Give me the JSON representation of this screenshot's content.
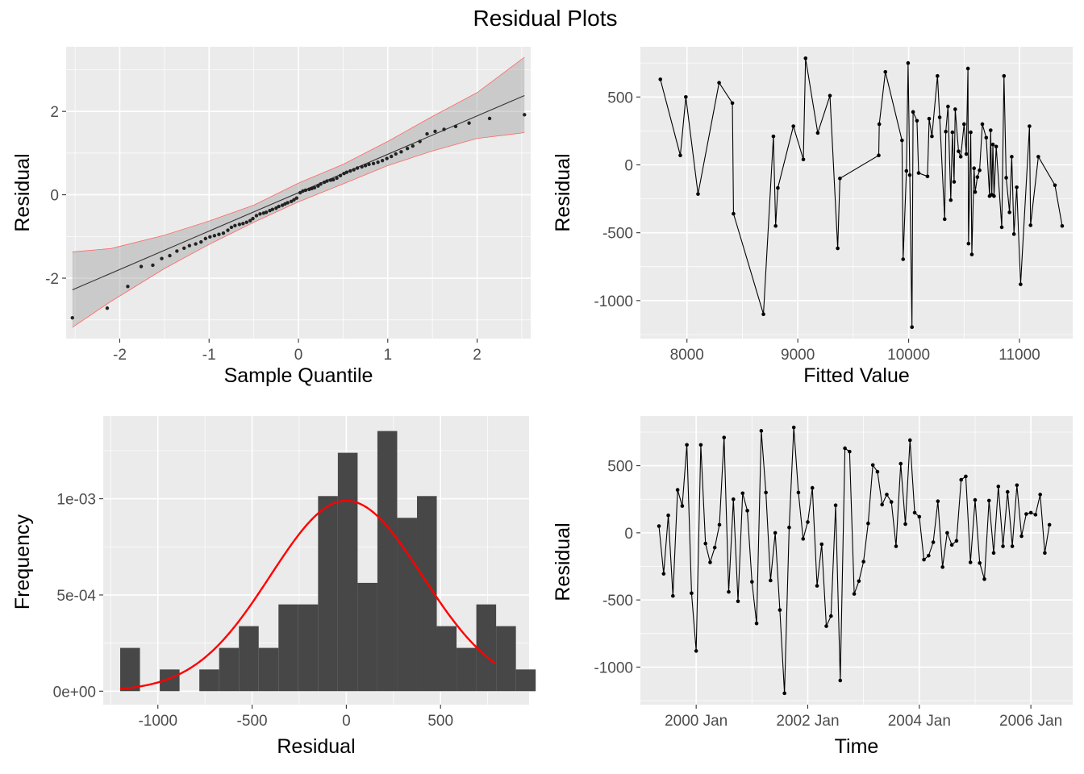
{
  "title": "Residual Plots",
  "chart_data": [
    {
      "id": "qq",
      "type": "scatter",
      "xlabel": "Sample Quantile",
      "ylabel": "Residual",
      "xlim": [
        -2.6,
        2.6
      ],
      "ylim": [
        -3.45,
        3.55
      ],
      "xticks": [
        -2,
        -1,
        0,
        1,
        2
      ],
      "xtick_labels": [
        "-2",
        "-1",
        "0",
        "1",
        "2"
      ],
      "yticks": [
        -2,
        0,
        2
      ],
      "ytick_labels": [
        "-2",
        "0",
        "2"
      ],
      "grid": true,
      "reference_line": {
        "x": [
          -2.53,
          2.53
        ],
        "y": [
          -2.28,
          2.38
        ]
      },
      "band_color": "#ff6666",
      "band": [
        {
          "x": -2.53,
          "lo": -3.18,
          "hi": -1.37
        },
        {
          "x": -2.1,
          "lo": -2.56,
          "hi": -1.29
        },
        {
          "x": -1.5,
          "lo": -1.77,
          "hi": -0.97
        },
        {
          "x": -1.0,
          "lo": -1.19,
          "hi": -0.63
        },
        {
          "x": -0.5,
          "lo": -0.66,
          "hi": -0.25
        },
        {
          "x": 0.0,
          "lo": -0.17,
          "hi": 0.28
        },
        {
          "x": 0.5,
          "lo": 0.26,
          "hi": 0.73
        },
        {
          "x": 1.0,
          "lo": 0.7,
          "hi": 1.28
        },
        {
          "x": 1.5,
          "lo": 1.05,
          "hi": 1.88
        },
        {
          "x": 2.0,
          "lo": 1.35,
          "hi": 2.45
        },
        {
          "x": 2.53,
          "lo": 1.49,
          "hi": 3.3
        }
      ],
      "points": [
        [
          -2.53,
          -2.95
        ],
        [
          -2.14,
          -2.72
        ],
        [
          -1.91,
          -2.2
        ],
        [
          -1.76,
          -1.72
        ],
        [
          -1.63,
          -1.69
        ],
        [
          -1.53,
          -1.53
        ],
        [
          -1.44,
          -1.46
        ],
        [
          -1.36,
          -1.35
        ],
        [
          -1.28,
          -1.28
        ],
        [
          -1.22,
          -1.22
        ],
        [
          -1.15,
          -1.18
        ],
        [
          -1.09,
          -1.13
        ],
        [
          -1.04,
          -1.05
        ],
        [
          -0.99,
          -1.01
        ],
        [
          -0.94,
          -0.98
        ],
        [
          -0.89,
          -0.95
        ],
        [
          -0.84,
          -0.92
        ],
        [
          -0.79,
          -0.85
        ],
        [
          -0.75,
          -0.78
        ],
        [
          -0.71,
          -0.74
        ],
        [
          -0.66,
          -0.71
        ],
        [
          -0.62,
          -0.69
        ],
        [
          -0.58,
          -0.66
        ],
        [
          -0.54,
          -0.62
        ],
        [
          -0.51,
          -0.57
        ],
        [
          -0.47,
          -0.5
        ],
        [
          -0.43,
          -0.46
        ],
        [
          -0.39,
          -0.44
        ],
        [
          -0.36,
          -0.42
        ],
        [
          -0.32,
          -0.38
        ],
        [
          -0.29,
          -0.35
        ],
        [
          -0.25,
          -0.32
        ],
        [
          -0.22,
          -0.28
        ],
        [
          -0.18,
          -0.25
        ],
        [
          -0.15,
          -0.22
        ],
        [
          -0.12,
          -0.19
        ],
        [
          -0.08,
          -0.16
        ],
        [
          -0.05,
          -0.12
        ],
        [
          -0.02,
          -0.08
        ],
        [
          0.02,
          0.05
        ],
        [
          0.05,
          0.09
        ],
        [
          0.08,
          0.11
        ],
        [
          0.12,
          0.13
        ],
        [
          0.15,
          0.15
        ],
        [
          0.18,
          0.17
        ],
        [
          0.22,
          0.21
        ],
        [
          0.25,
          0.26
        ],
        [
          0.29,
          0.3
        ],
        [
          0.32,
          0.33
        ],
        [
          0.36,
          0.35
        ],
        [
          0.39,
          0.36
        ],
        [
          0.43,
          0.4
        ],
        [
          0.47,
          0.46
        ],
        [
          0.51,
          0.51
        ],
        [
          0.54,
          0.54
        ],
        [
          0.58,
          0.57
        ],
        [
          0.62,
          0.6
        ],
        [
          0.66,
          0.64
        ],
        [
          0.71,
          0.67
        ],
        [
          0.75,
          0.7
        ],
        [
          0.79,
          0.73
        ],
        [
          0.84,
          0.75
        ],
        [
          0.89,
          0.78
        ],
        [
          0.94,
          0.82
        ],
        [
          0.99,
          0.87
        ],
        [
          1.04,
          0.92
        ],
        [
          1.09,
          0.98
        ],
        [
          1.15,
          1.03
        ],
        [
          1.22,
          1.11
        ],
        [
          1.28,
          1.17
        ],
        [
          1.36,
          1.28
        ],
        [
          1.44,
          1.46
        ],
        [
          1.53,
          1.52
        ],
        [
          1.63,
          1.57
        ],
        [
          1.76,
          1.64
        ],
        [
          1.91,
          1.72
        ],
        [
          2.14,
          1.83
        ],
        [
          2.53,
          1.92
        ]
      ]
    },
    {
      "id": "fitted",
      "type": "line",
      "xlabel": "Fitted Value",
      "ylabel": "Residual",
      "xlim": [
        7580,
        11480
      ],
      "ylim": [
        -1280,
        870
      ],
      "xticks": [
        8000,
        9000,
        10000,
        11000
      ],
      "xtick_labels": [
        "8000",
        "9000",
        "10000",
        "11000"
      ],
      "yticks": [
        -1000,
        -500,
        0,
        500
      ],
      "ytick_labels": [
        "-1000",
        "-500",
        "0",
        "500"
      ],
      "grid": true,
      "points": [
        [
          7760,
          630
        ],
        [
          7940,
          70
        ],
        [
          7990,
          500
        ],
        [
          8100,
          -215
        ],
        [
          8290,
          605
        ],
        [
          8410,
          455
        ],
        [
          8420,
          -360
        ],
        [
          8690,
          -1100
        ],
        [
          8780,
          210
        ],
        [
          8800,
          -450
        ],
        [
          8820,
          -170
        ],
        [
          8960,
          285
        ],
        [
          9050,
          40
        ],
        [
          9070,
          785
        ],
        [
          9180,
          235
        ],
        [
          9290,
          510
        ],
        [
          9360,
          -615
        ],
        [
          9380,
          -100
        ],
        [
          9730,
          70
        ],
        [
          9735,
          300
        ],
        [
          9790,
          685
        ],
        [
          9940,
          180
        ],
        [
          9950,
          -695
        ],
        [
          9980,
          -45
        ],
        [
          9995,
          750
        ],
        [
          10010,
          -75
        ],
        [
          10040,
          390
        ],
        [
          10030,
          -1195
        ],
        [
          10075,
          325
        ],
        [
          10090,
          -60
        ],
        [
          10170,
          -85
        ],
        [
          10185,
          340
        ],
        [
          10210,
          210
        ],
        [
          10260,
          655
        ],
        [
          10280,
          350
        ],
        [
          10325,
          -400
        ],
        [
          10335,
          245
        ],
        [
          10355,
          430
        ],
        [
          10380,
          -260
        ],
        [
          10395,
          240
        ],
        [
          10410,
          -125
        ],
        [
          10420,
          410
        ],
        [
          10450,
          100
        ],
        [
          10470,
          60
        ],
        [
          10500,
          300
        ],
        [
          10520,
          80
        ],
        [
          10535,
          710
        ],
        [
          10540,
          -580
        ],
        [
          10560,
          240
        ],
        [
          10570,
          -660
        ],
        [
          10590,
          -25
        ],
        [
          10600,
          -200
        ],
        [
          10620,
          -90
        ],
        [
          10640,
          -40
        ],
        [
          10665,
          300
        ],
        [
          10700,
          200
        ],
        [
          10730,
          -230
        ],
        [
          10740,
          255
        ],
        [
          10750,
          -220
        ],
        [
          10760,
          150
        ],
        [
          10770,
          -230
        ],
        [
          10790,
          135
        ],
        [
          10840,
          -460
        ],
        [
          10860,
          655
        ],
        [
          10880,
          -95
        ],
        [
          10910,
          -350
        ],
        [
          10930,
          60
        ],
        [
          10950,
          -510
        ],
        [
          10975,
          -165
        ],
        [
          11010,
          -880
        ],
        [
          11090,
          285
        ],
        [
          11100,
          -445
        ],
        [
          11170,
          60
        ],
        [
          11320,
          -150
        ],
        [
          11385,
          -450
        ]
      ]
    },
    {
      "id": "hist",
      "type": "bar",
      "xlabel": "Residual",
      "ylabel": "Frequency",
      "xlim": [
        -1290,
        970
      ],
      "ylim": [
        -7e-05,
        0.00143
      ],
      "xticks": [
        -1000,
        -500,
        0,
        500
      ],
      "xtick_labels": [
        "-1000",
        "-500",
        "0",
        "500"
      ],
      "yticks": [
        0,
        0.0005,
        0.001
      ],
      "ytick_labels": [
        "0e+00",
        "5e-04",
        "1e-03"
      ],
      "grid": true,
      "bar_color": "#474747",
      "curve_color": "#ff0000",
      "bins": [
        {
          "x0": -1200,
          "x1": -1095,
          "value": 0.000225
        },
        {
          "x0": -1095,
          "x1": -990,
          "value": 0
        },
        {
          "x0": -990,
          "x1": -885,
          "value": 0.000113
        },
        {
          "x0": -885,
          "x1": -780,
          "value": 0
        },
        {
          "x0": -780,
          "x1": -675,
          "value": 0.000113
        },
        {
          "x0": -675,
          "x1": -570,
          "value": 0.000225
        },
        {
          "x0": -570,
          "x1": -465,
          "value": 0.000338
        },
        {
          "x0": -465,
          "x1": -360,
          "value": 0.000225
        },
        {
          "x0": -360,
          "x1": -255,
          "value": 0.000451
        },
        {
          "x0": -255,
          "x1": -150,
          "value": 0.000451
        },
        {
          "x0": -150,
          "x1": -45,
          "value": 0.001014
        },
        {
          "x0": -45,
          "x1": 60,
          "value": 0.001239
        },
        {
          "x0": 60,
          "x1": 165,
          "value": 0.000563
        },
        {
          "x0": 165,
          "x1": 270,
          "value": 0.001352
        },
        {
          "x0": 270,
          "x1": 375,
          "value": 0.000901
        },
        {
          "x0": 375,
          "x1": 480,
          "value": 0.001014
        },
        {
          "x0": 480,
          "x1": 585,
          "value": 0.000338
        },
        {
          "x0": 585,
          "x1": 690,
          "value": 0.000225
        },
        {
          "x0": 690,
          "x1": 795,
          "value": 0.000451
        },
        {
          "x0": 795,
          "x1": 900,
          "value": 0.000338
        },
        {
          "x0": 900,
          "x1": 1005,
          "value": 0.000113
        }
      ],
      "normal_curve": {
        "mean": 0,
        "sd": 403,
        "peak": 0.00099,
        "x_from": -1200,
        "x_to": 790
      }
    },
    {
      "id": "time",
      "type": "line",
      "xlabel": "Time",
      "ylabel": "Residual",
      "xlim": [
        1999.0,
        2006.75
      ],
      "ylim": [
        -1280,
        870
      ],
      "xticks": [
        2000.0,
        2002.0,
        2004.0,
        2006.0
      ],
      "xtick_labels": [
        "2000 Jan",
        "2002 Jan",
        "2004 Jan",
        "2006 Jan"
      ],
      "yticks": [
        -1000,
        -500,
        0,
        500
      ],
      "ytick_labels": [
        "-1000",
        "-500",
        "0",
        "500"
      ],
      "grid": true,
      "points": [
        [
          1999.333,
          50
        ],
        [
          1999.417,
          -305
        ],
        [
          1999.5,
          130
        ],
        [
          1999.583,
          -470
        ],
        [
          1999.667,
          320
        ],
        [
          1999.75,
          200
        ],
        [
          1999.833,
          655
        ],
        [
          1999.917,
          -450
        ],
        [
          2000.0,
          -880
        ],
        [
          2000.083,
          655
        ],
        [
          2000.167,
          -80
        ],
        [
          2000.25,
          -220
        ],
        [
          2000.333,
          -110
        ],
        [
          2000.417,
          60
        ],
        [
          2000.5,
          710
        ],
        [
          2000.583,
          -440
        ],
        [
          2000.667,
          250
        ],
        [
          2000.75,
          -510
        ],
        [
          2000.833,
          295
        ],
        [
          2000.917,
          165
        ],
        [
          2001.0,
          -365
        ],
        [
          2001.083,
          -675
        ],
        [
          2001.167,
          760
        ],
        [
          2001.25,
          300
        ],
        [
          2001.333,
          -355
        ],
        [
          2001.417,
          0
        ],
        [
          2001.5,
          -575
        ],
        [
          2001.583,
          -1195
        ],
        [
          2001.667,
          40
        ],
        [
          2001.75,
          785
        ],
        [
          2001.833,
          300
        ],
        [
          2001.917,
          -45
        ],
        [
          2002.0,
          80
        ],
        [
          2002.083,
          335
        ],
        [
          2002.167,
          -395
        ],
        [
          2002.25,
          -85
        ],
        [
          2002.333,
          -695
        ],
        [
          2002.417,
          -620
        ],
        [
          2002.5,
          205
        ],
        [
          2002.583,
          -1100
        ],
        [
          2002.667,
          630
        ],
        [
          2002.75,
          605
        ],
        [
          2002.833,
          -455
        ],
        [
          2002.917,
          -360
        ],
        [
          2003.0,
          -215
        ],
        [
          2003.083,
          70
        ],
        [
          2003.167,
          505
        ],
        [
          2003.25,
          455
        ],
        [
          2003.333,
          210
        ],
        [
          2003.417,
          285
        ],
        [
          2003.5,
          230
        ],
        [
          2003.583,
          -100
        ],
        [
          2003.667,
          515
        ],
        [
          2003.75,
          65
        ],
        [
          2003.833,
          690
        ],
        [
          2003.917,
          150
        ],
        [
          2004.0,
          120
        ],
        [
          2004.083,
          -200
        ],
        [
          2004.167,
          -170
        ],
        [
          2004.25,
          -70
        ],
        [
          2004.333,
          235
        ],
        [
          2004.417,
          -255
        ],
        [
          2004.5,
          0
        ],
        [
          2004.583,
          -90
        ],
        [
          2004.667,
          -60
        ],
        [
          2004.75,
          395
        ],
        [
          2004.833,
          420
        ],
        [
          2004.917,
          -220
        ],
        [
          2005.0,
          245
        ],
        [
          2005.083,
          -225
        ],
        [
          2005.167,
          -345
        ],
        [
          2005.25,
          240
        ],
        [
          2005.333,
          -150
        ],
        [
          2005.417,
          345
        ],
        [
          2005.5,
          -100
        ],
        [
          2005.583,
          305
        ],
        [
          2005.667,
          -100
        ],
        [
          2005.75,
          355
        ],
        [
          2005.833,
          -25
        ],
        [
          2005.917,
          140
        ],
        [
          2006.0,
          150
        ],
        [
          2006.083,
          135
        ],
        [
          2006.167,
          285
        ],
        [
          2006.25,
          -150
        ],
        [
          2006.333,
          60
        ]
      ]
    }
  ]
}
